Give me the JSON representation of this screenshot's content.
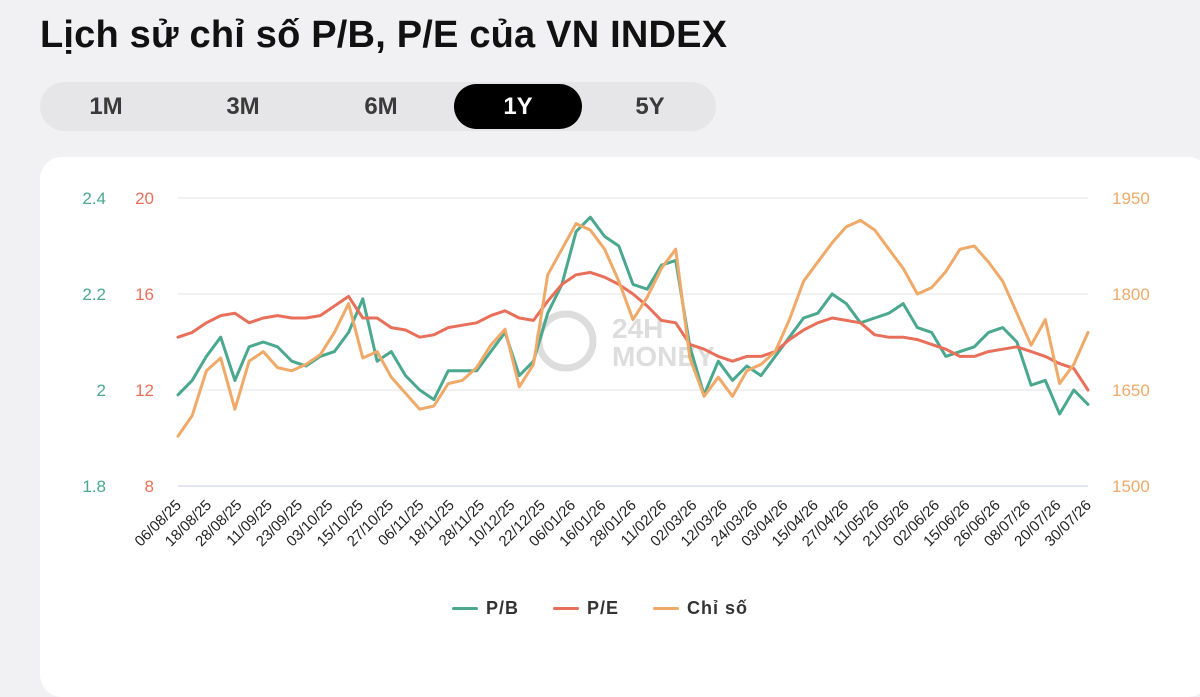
{
  "title": "Lịch sử chỉ số P/B, P/E của VN INDEX",
  "tabs": [
    {
      "label": "1M",
      "active": false
    },
    {
      "label": "3M",
      "active": false
    },
    {
      "label": "6M",
      "active": false
    },
    {
      "label": "1Y",
      "active": true
    },
    {
      "label": "5Y",
      "active": false
    }
  ],
  "watermark": "24H MONEY",
  "colors": {
    "pb": "#4aa88f",
    "pe": "#e8705a",
    "index": "#efaa6a",
    "grid": "#e3e3e3",
    "baseline": "#c8cbf0"
  },
  "chart_data": {
    "type": "line",
    "x_tick_labels": [
      "06/08/25",
      "18/08/25",
      "28/08/25",
      "11/09/25",
      "23/09/25",
      "03/10/25",
      "15/10/25",
      "27/10/25",
      "06/11/25",
      "18/11/25",
      "28/11/25",
      "10/12/25",
      "22/12/25",
      "06/01/26",
      "16/01/26",
      "28/01/26",
      "11/02/26",
      "02/03/26",
      "12/03/26",
      "24/03/26",
      "03/04/26",
      "15/04/26",
      "27/04/26",
      "11/05/26",
      "21/05/26",
      "02/06/26",
      "15/06/26",
      "26/06/26",
      "08/07/26",
      "20/07/26",
      "30/07/26"
    ],
    "axes": {
      "pb": {
        "label_ticks": [
          "1.8",
          "2",
          "2.2",
          "2.4"
        ],
        "range": [
          1.8,
          2.4
        ],
        "side": "left"
      },
      "pe": {
        "label_ticks": [
          "8",
          "12",
          "16",
          "20"
        ],
        "range": [
          8,
          20
        ],
        "side": "left"
      },
      "index": {
        "label_ticks": [
          "1500",
          "1650",
          "1800",
          "1950"
        ],
        "range": [
          1500,
          1950
        ],
        "side": "right"
      }
    },
    "grid": true,
    "legend_position": "bottom",
    "series": [
      {
        "name": "P/B",
        "axis": "pb",
        "values": [
          1.99,
          2.02,
          2.07,
          2.11,
          2.02,
          2.09,
          2.1,
          2.09,
          2.06,
          2.05,
          2.07,
          2.08,
          2.12,
          2.19,
          2.06,
          2.08,
          2.03,
          2.0,
          1.98,
          2.04,
          2.04,
          2.04,
          2.08,
          2.12,
          2.03,
          2.06,
          2.16,
          2.22,
          2.33,
          2.36,
          2.32,
          2.3,
          2.22,
          2.21,
          2.26,
          2.27,
          2.09,
          1.99,
          2.06,
          2.02,
          2.05,
          2.03,
          2.07,
          2.11,
          2.15,
          2.16,
          2.2,
          2.18,
          2.14,
          2.15,
          2.16,
          2.18,
          2.13,
          2.12,
          2.07,
          2.08,
          2.09,
          2.12,
          2.13,
          2.1,
          2.01,
          2.02,
          1.95,
          2.0,
          1.97
        ]
      },
      {
        "name": "P/E",
        "axis": "pe",
        "values": [
          14.2,
          14.4,
          14.8,
          15.1,
          15.2,
          14.8,
          15.0,
          15.1,
          15.0,
          15.0,
          15.1,
          15.5,
          15.9,
          15.0,
          15.0,
          14.6,
          14.5,
          14.2,
          14.3,
          14.6,
          14.7,
          14.8,
          15.1,
          15.3,
          15.0,
          14.9,
          15.7,
          16.4,
          16.8,
          16.9,
          16.7,
          16.4,
          16.0,
          15.5,
          14.9,
          14.8,
          13.9,
          13.7,
          13.4,
          13.2,
          13.4,
          13.4,
          13.6,
          14.1,
          14.5,
          14.8,
          15.0,
          14.9,
          14.8,
          14.3,
          14.2,
          14.2,
          14.1,
          13.9,
          13.7,
          13.4,
          13.4,
          13.6,
          13.7,
          13.8,
          13.6,
          13.4,
          13.1,
          12.9,
          12.0
        ]
      },
      {
        "name": "Chỉ số",
        "axis": "index",
        "values": [
          1578,
          1610,
          1680,
          1700,
          1620,
          1695,
          1710,
          1685,
          1680,
          1690,
          1705,
          1740,
          1785,
          1700,
          1710,
          1670,
          1645,
          1620,
          1625,
          1660,
          1665,
          1685,
          1720,
          1745,
          1655,
          1690,
          1830,
          1870,
          1910,
          1900,
          1870,
          1820,
          1760,
          1795,
          1840,
          1870,
          1700,
          1640,
          1670,
          1640,
          1680,
          1690,
          1710,
          1760,
          1820,
          1850,
          1880,
          1905,
          1915,
          1900,
          1870,
          1840,
          1800,
          1810,
          1835,
          1870,
          1875,
          1850,
          1820,
          1770,
          1720,
          1760,
          1660,
          1690,
          1740
        ]
      }
    ]
  }
}
